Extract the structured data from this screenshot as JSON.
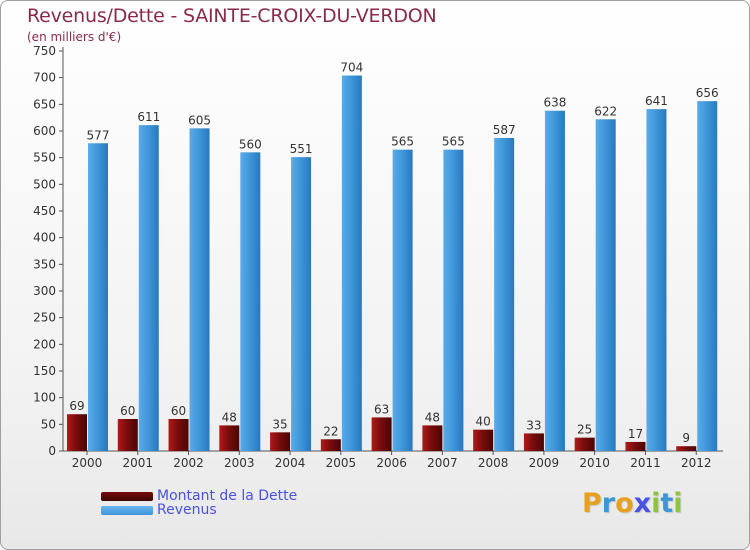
{
  "chart_data": {
    "type": "bar",
    "title": "Revenus/Dette - SAINTE-CROIX-DU-VERDON",
    "subtitle": "(en milliers d'€)",
    "categories": [
      "2000",
      "2001",
      "2002",
      "2003",
      "2004",
      "2005",
      "2006",
      "2007",
      "2008",
      "2009",
      "2010",
      "2011",
      "2012"
    ],
    "series": [
      {
        "name": "Montant de la Dette",
        "color": "#7a0c0c",
        "values": [
          69,
          60,
          60,
          48,
          35,
          22,
          63,
          48,
          40,
          33,
          25,
          17,
          9
        ]
      },
      {
        "name": "Revenus",
        "color": "#3d95d8",
        "values": [
          577,
          611,
          605,
          560,
          551,
          704,
          565,
          565,
          587,
          638,
          622,
          641,
          656
        ]
      }
    ],
    "ylim": [
      0,
      750
    ],
    "yticks": [
      0,
      50,
      100,
      150,
      200,
      250,
      300,
      350,
      400,
      450,
      500,
      550,
      600,
      650,
      700,
      750
    ],
    "grid": false,
    "legend": "bottom-left"
  },
  "legend": {
    "debt_label": "Montant de la Dette",
    "revenue_label": "Revenus",
    "debt_color": "#7a0c0c",
    "revenue_color": "#3d95d8"
  },
  "brand": {
    "letters": [
      "P",
      "r",
      "o",
      "x",
      "i",
      "t",
      "i"
    ],
    "colors": [
      "#e8a020",
      "#3d95d8",
      "#e8a020",
      "#4a52e0",
      "#8cc63f",
      "#3d95d8",
      "#8cc63f"
    ]
  }
}
